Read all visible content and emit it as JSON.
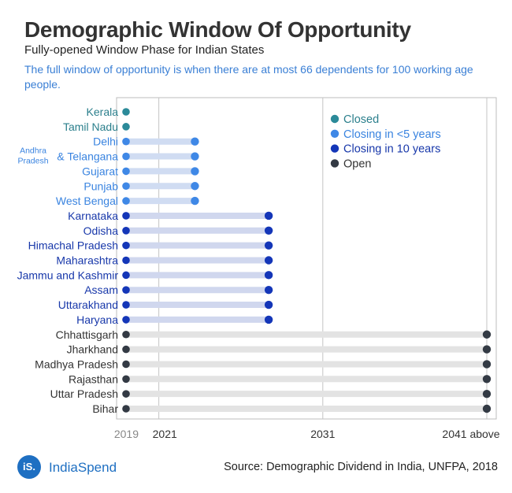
{
  "header": {
    "title": "Demographic Window Of Opportunity",
    "subtitle": "Fully-opened Window Phase for Indian States",
    "description": "The full window of opportunity is when there are at most 66 dependents for 100 working age people."
  },
  "footer": {
    "logo_text": "iS.",
    "brand": "IndiaSpend",
    "source": "Source: Demographic Dividend in India, UNFPA, 2018"
  },
  "colors": {
    "Closed": "#2b8a99",
    "Closing in <5 years": "#3f88e6",
    "Closing in 10 years": "#1436b8",
    "Open": "#333a44"
  },
  "chart_data": {
    "type": "dumbbell",
    "start_year": 2019,
    "x_ticks": [
      {
        "value": 2019,
        "label": "2019"
      },
      {
        "value": 2021,
        "label": "2021"
      },
      {
        "value": 2031,
        "label": "2031"
      },
      {
        "value": 2041,
        "label": "2041 above"
      }
    ],
    "xlim": [
      2019,
      2041
    ],
    "legend": {
      "placement": "top-right",
      "entries": [
        "Closed",
        "Closing in <5 years",
        "Closing in 10 years",
        "Open"
      ]
    },
    "states": [
      {
        "name": "Kerala",
        "category": "Closed",
        "end": 2019
      },
      {
        "name": "Tamil Nadu",
        "category": "Closed",
        "end": 2019
      },
      {
        "name": "Delhi",
        "category": "Closing in <5 years",
        "end": 2023.2
      },
      {
        "name": "Andhra Pradesh & Telangana",
        "category": "Closing in <5 years",
        "end": 2023.2
      },
      {
        "name": "Gujarat",
        "category": "Closing in <5 years",
        "end": 2023.2
      },
      {
        "name": "Punjab",
        "category": "Closing in <5 years",
        "end": 2023.2
      },
      {
        "name": "West Bengal",
        "category": "Closing in <5 years",
        "end": 2023.2
      },
      {
        "name": "Karnataka",
        "category": "Closing in 10 years",
        "end": 2027.7
      },
      {
        "name": "Odisha",
        "category": "Closing in 10 years",
        "end": 2027.7
      },
      {
        "name": "Himachal Pradesh",
        "category": "Closing in 10 years",
        "end": 2027.7
      },
      {
        "name": "Maharashtra",
        "category": "Closing in 10 years",
        "end": 2027.7
      },
      {
        "name": "Jammu and Kashmir",
        "category": "Closing in 10 years",
        "end": 2027.7
      },
      {
        "name": "Assam",
        "category": "Closing in 10 years",
        "end": 2027.7
      },
      {
        "name": "Uttarakhand",
        "category": "Closing in 10 years",
        "end": 2027.7
      },
      {
        "name": "Haryana",
        "category": "Closing in 10 years",
        "end": 2027.7
      },
      {
        "name": "Chhattisgarh",
        "category": "Open",
        "end": 2041
      },
      {
        "name": "Jharkhand",
        "category": "Open",
        "end": 2041
      },
      {
        "name": "Madhya Pradesh",
        "category": "Open",
        "end": 2041
      },
      {
        "name": "Rajasthan",
        "category": "Open",
        "end": 2041
      },
      {
        "name": "Uttar Pradesh",
        "category": "Open",
        "end": 2041
      },
      {
        "name": "Bihar",
        "category": "Open",
        "end": 2041
      }
    ]
  }
}
